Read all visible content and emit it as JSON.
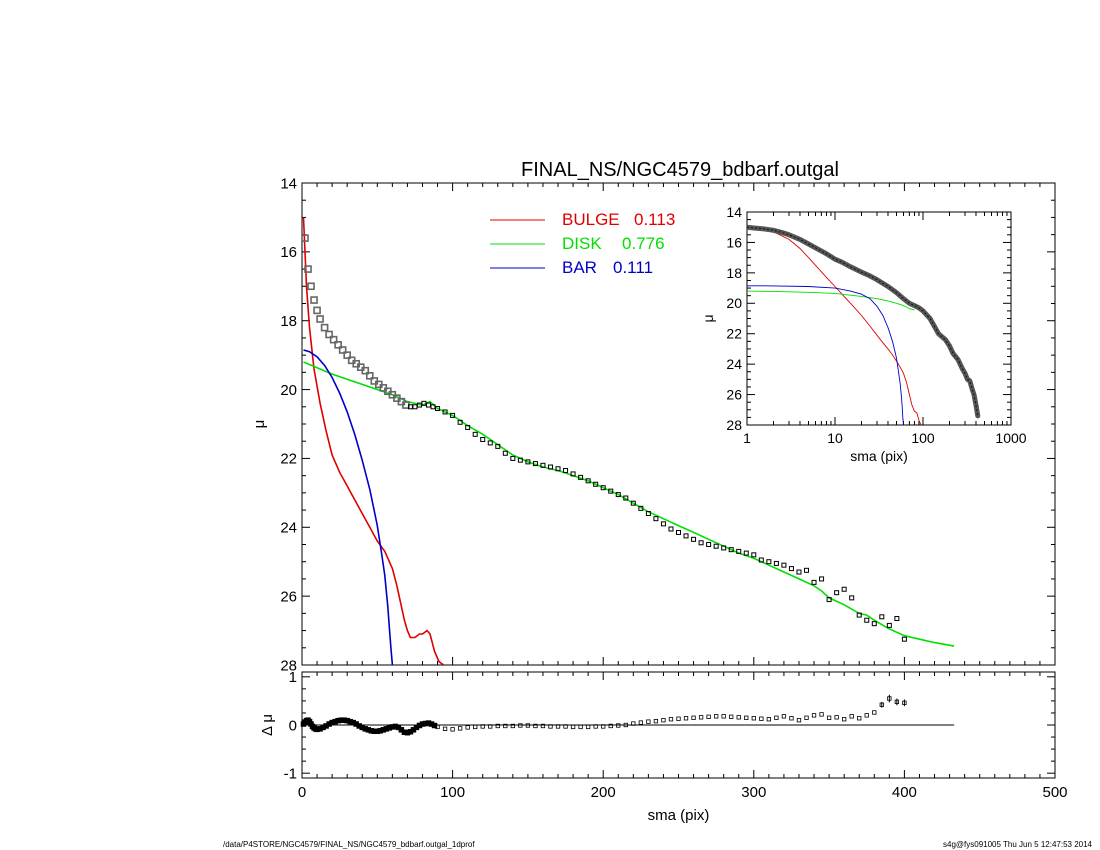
{
  "footer": {
    "path": "/data/P4STORE/NGC4579/FINAL_NS/NGC4579_bdbarf.outgal_1dprof",
    "stamp": "s4g@fys091005  Thu Jun  5 12:47:53 2014"
  },
  "colors": {
    "bulge": "#e00000",
    "disk": "#00e000",
    "bar": "#0000c8",
    "data": "#000000"
  },
  "chart_data": [
    {
      "id": "main",
      "type": "line",
      "title": "FINAL_NS/NGC4579_bdbarf.outgal",
      "xlabel": "",
      "ylabel": "μ",
      "xlim": [
        0,
        500
      ],
      "ylim": [
        28,
        14
      ],
      "yticks": [
        14,
        16,
        18,
        20,
        22,
        24,
        26,
        28
      ],
      "xticks": [
        0,
        100,
        200,
        300,
        400,
        500
      ],
      "show_xtick_labels": false,
      "legend": [
        {
          "name": "BULGE",
          "value": "0.113",
          "color": "#e00000"
        },
        {
          "name": "DISK",
          "value": "0.776",
          "color": "#00e000"
        },
        {
          "name": "BAR",
          "value": "0.111",
          "color": "#0000c8"
        }
      ],
      "series": [
        {
          "name": "BULGE",
          "color": "#e00000",
          "x": [
            1,
            3,
            5,
            8,
            12,
            16,
            20,
            25,
            30,
            35,
            40,
            45,
            50,
            55,
            60,
            63,
            66,
            68,
            70,
            72,
            75,
            78,
            80,
            83,
            85,
            88,
            91,
            94
          ],
          "y": [
            15.0,
            17.0,
            18.2,
            19.4,
            20.4,
            21.2,
            21.9,
            22.4,
            22.8,
            23.2,
            23.6,
            24.0,
            24.4,
            24.7,
            25.2,
            25.7,
            26.3,
            26.7,
            27.0,
            27.2,
            27.2,
            27.1,
            27.1,
            27.0,
            27.1,
            27.6,
            27.9,
            28.0
          ]
        },
        {
          "name": "DISK",
          "color": "#00e000",
          "x": [
            1,
            20,
            40,
            60,
            70,
            80,
            85,
            90,
            100,
            110,
            120,
            130,
            140,
            150,
            160,
            170,
            180,
            190,
            200,
            210,
            220,
            230,
            240,
            250,
            260,
            270,
            280,
            290,
            300,
            310,
            320,
            330,
            340,
            345,
            350,
            360,
            370,
            375,
            380,
            390,
            400,
            410,
            420,
            433
          ],
          "y": [
            19.2,
            19.55,
            19.85,
            20.15,
            20.35,
            20.45,
            20.35,
            20.55,
            20.75,
            21.05,
            21.3,
            21.6,
            21.9,
            22.1,
            22.25,
            22.35,
            22.5,
            22.65,
            22.85,
            23.05,
            23.3,
            23.55,
            23.75,
            23.95,
            24.15,
            24.35,
            24.55,
            24.75,
            24.9,
            25.1,
            25.3,
            25.5,
            25.7,
            25.85,
            26.05,
            26.25,
            26.5,
            26.55,
            26.7,
            26.95,
            27.15,
            27.25,
            27.35,
            27.45
          ]
        },
        {
          "name": "BAR",
          "color": "#0000c8",
          "x": [
            1,
            5,
            10,
            15,
            20,
            25,
            30,
            35,
            40,
            45,
            50,
            53,
            55,
            57,
            58,
            59,
            60
          ],
          "y": [
            18.85,
            18.9,
            19.05,
            19.3,
            19.65,
            20.1,
            20.65,
            21.3,
            22.05,
            22.9,
            23.95,
            24.8,
            25.4,
            26.3,
            26.9,
            27.5,
            28.0
          ]
        },
        {
          "name": "data",
          "color": "#000000",
          "style": "squares",
          "x": [
            2,
            4,
            6,
            8,
            10,
            12,
            15,
            18,
            21,
            24,
            27,
            30,
            33,
            36,
            39,
            42,
            45,
            48,
            51,
            54,
            57,
            60,
            63,
            66,
            69,
            72,
            75,
            78,
            81,
            84,
            87,
            90,
            95,
            100,
            105,
            110,
            115,
            120,
            125,
            130,
            135,
            140,
            145,
            150,
            155,
            160,
            165,
            170,
            175,
            180,
            185,
            190,
            195,
            200,
            205,
            210,
            215,
            220,
            225,
            230,
            235,
            240,
            245,
            250,
            255,
            260,
            265,
            270,
            275,
            280,
            285,
            290,
            295,
            300,
            305,
            310,
            315,
            320,
            325,
            330,
            335,
            340,
            345,
            350,
            355,
            360,
            365,
            370,
            375,
            380,
            385,
            390,
            395,
            400
          ],
          "y": [
            15.6,
            16.5,
            17.0,
            17.4,
            17.7,
            17.95,
            18.2,
            18.4,
            18.55,
            18.7,
            18.85,
            19.0,
            19.15,
            19.25,
            19.35,
            19.45,
            19.6,
            19.75,
            19.85,
            19.95,
            20.05,
            20.15,
            20.25,
            20.35,
            20.45,
            20.5,
            20.5,
            20.45,
            20.4,
            20.45,
            20.5,
            20.55,
            20.65,
            20.75,
            20.95,
            21.1,
            21.3,
            21.45,
            21.55,
            21.65,
            21.85,
            22.0,
            22.05,
            22.1,
            22.15,
            22.2,
            22.25,
            22.3,
            22.35,
            22.45,
            22.55,
            22.65,
            22.75,
            22.85,
            22.95,
            23.05,
            23.15,
            23.3,
            23.45,
            23.6,
            23.75,
            23.9,
            24.05,
            24.15,
            24.25,
            24.35,
            24.45,
            24.5,
            24.55,
            24.6,
            24.65,
            24.7,
            24.75,
            24.8,
            24.95,
            25.0,
            25.05,
            25.1,
            25.2,
            25.3,
            25.25,
            25.6,
            25.5,
            26.1,
            25.9,
            25.8,
            26.05,
            26.55,
            26.7,
            26.8,
            26.6,
            26.85,
            26.65,
            27.25
          ]
        }
      ]
    },
    {
      "id": "resid",
      "type": "scatter",
      "title": "",
      "xlabel": "sma (pix)",
      "ylabel": "Δ μ",
      "xlim": [
        0,
        500
      ],
      "ylim": [
        -1.1,
        1.1
      ],
      "yticks": [
        -1,
        0,
        1
      ],
      "xticks": [
        0,
        100,
        200,
        300,
        400,
        500
      ],
      "zero_line": {
        "x0": 0,
        "x1": 433
      },
      "series": [
        {
          "name": "residual",
          "color": "#000000",
          "x": [
            1,
            2,
            3,
            4,
            5,
            6,
            7,
            8,
            9,
            10,
            12,
            14,
            16,
            18,
            20,
            22,
            24,
            26,
            28,
            30,
            32,
            34,
            36,
            38,
            40,
            42,
            44,
            46,
            48,
            50,
            52,
            54,
            56,
            58,
            60,
            62,
            64,
            66,
            68,
            70,
            72,
            74,
            76,
            78,
            80,
            82,
            84,
            86,
            88,
            90,
            95,
            100,
            105,
            110,
            115,
            120,
            125,
            130,
            135,
            140,
            145,
            150,
            155,
            160,
            165,
            170,
            175,
            180,
            185,
            190,
            195,
            200,
            205,
            210,
            215,
            220,
            225,
            230,
            235,
            240,
            245,
            250,
            255,
            260,
            265,
            270,
            275,
            280,
            285,
            290,
            295,
            300,
            305,
            310,
            315,
            320,
            325,
            330,
            335,
            340,
            345,
            350,
            355,
            360,
            365,
            370,
            375,
            380,
            385,
            390,
            395,
            400
          ],
          "y": [
            0.02,
            0.06,
            0.09,
            0.1,
            0.07,
            0.02,
            -0.03,
            -0.06,
            -0.08,
            -0.09,
            -0.08,
            -0.05,
            -0.02,
            0.02,
            0.05,
            0.07,
            0.09,
            0.1,
            0.1,
            0.09,
            0.07,
            0.05,
            0.02,
            -0.02,
            -0.05,
            -0.08,
            -0.1,
            -0.12,
            -0.13,
            -0.13,
            -0.12,
            -0.1,
            -0.08,
            -0.06,
            -0.04,
            -0.03,
            -0.05,
            -0.1,
            -0.15,
            -0.16,
            -0.14,
            -0.1,
            -0.05,
            -0.01,
            0.02,
            0.03,
            0.04,
            0.02,
            -0.01,
            -0.04,
            -0.08,
            -0.09,
            -0.07,
            -0.05,
            -0.04,
            -0.03,
            -0.03,
            -0.02,
            -0.02,
            -0.02,
            -0.01,
            -0.01,
            -0.02,
            -0.02,
            -0.03,
            -0.03,
            -0.03,
            -0.04,
            -0.04,
            -0.04,
            -0.03,
            -0.03,
            -0.02,
            -0.01,
            0.0,
            0.03,
            0.05,
            0.07,
            0.08,
            0.1,
            0.12,
            0.13,
            0.14,
            0.15,
            0.16,
            0.17,
            0.18,
            0.18,
            0.17,
            0.16,
            0.15,
            0.14,
            0.13,
            0.12,
            0.15,
            0.18,
            0.14,
            0.1,
            0.15,
            0.2,
            0.22,
            0.15,
            0.16,
            0.12,
            0.18,
            0.14,
            0.2,
            0.26,
            0.42,
            0.55,
            0.48,
            0.46
          ],
          "errors": [
            0,
            0,
            0,
            0,
            0,
            0,
            0,
            0,
            0,
            0,
            0,
            0,
            0,
            0,
            0,
            0,
            0,
            0,
            0,
            0,
            0,
            0,
            0,
            0,
            0,
            0,
            0,
            0,
            0,
            0,
            0,
            0,
            0,
            0,
            0,
            0,
            0,
            0,
            0,
            0,
            0,
            0,
            0,
            0,
            0,
            0,
            0,
            0,
            0,
            0,
            0,
            0,
            0,
            0,
            0,
            0,
            0,
            0,
            0,
            0,
            0,
            0,
            0,
            0,
            0,
            0,
            0,
            0,
            0,
            0,
            0,
            0,
            0,
            0,
            0,
            0,
            0,
            0,
            0,
            0,
            0,
            0,
            0,
            0,
            0,
            0,
            0,
            0,
            0,
            0,
            0,
            0,
            0,
            0,
            0,
            0,
            0,
            0,
            0,
            0,
            0,
            0,
            0,
            0,
            0,
            0,
            0,
            0,
            0.06,
            0.08,
            0.07,
            0.07
          ]
        }
      ]
    },
    {
      "id": "inset",
      "type": "line",
      "title": "",
      "xlabel": "sma (pix)",
      "ylabel": "μ",
      "xscale": "log",
      "xlim": [
        1,
        1000
      ],
      "ylim": [
        28,
        14
      ],
      "yticks": [
        14,
        16,
        18,
        20,
        22,
        24,
        26,
        28
      ],
      "xticks": [
        1,
        10,
        100,
        1000
      ],
      "series": [
        {
          "name": "BULGE",
          "color": "#e00000",
          "x": [
            1,
            1.5,
            2,
            3,
            4,
            5,
            6,
            8,
            10,
            12,
            15,
            20,
            25,
            30,
            35,
            40,
            45,
            50,
            55,
            60,
            65,
            70,
            75,
            80,
            85,
            90,
            95
          ],
          "y": [
            15.0,
            15.1,
            15.3,
            15.8,
            16.4,
            17.0,
            17.5,
            18.3,
            18.9,
            19.4,
            20.0,
            20.8,
            21.5,
            22.1,
            22.6,
            23.0,
            23.4,
            23.8,
            24.2,
            24.6,
            25.2,
            26.0,
            26.7,
            27.1,
            27.2,
            27.7,
            28.0
          ]
        },
        {
          "name": "DISK",
          "color": "#00e000",
          "x": [
            1,
            2,
            5,
            10,
            20,
            30,
            40,
            50,
            60,
            70,
            80
          ],
          "y": [
            19.2,
            19.22,
            19.28,
            19.35,
            19.55,
            19.7,
            19.85,
            20.0,
            20.15,
            20.35,
            20.45
          ]
        },
        {
          "name": "BAR",
          "color": "#0000c8",
          "x": [
            1,
            2,
            5,
            10,
            15,
            20,
            25,
            30,
            35,
            40,
            45,
            50,
            53,
            55,
            57,
            58,
            59,
            60
          ],
          "y": [
            18.85,
            18.86,
            18.9,
            19.0,
            19.2,
            19.4,
            19.7,
            20.2,
            20.8,
            21.6,
            22.5,
            23.6,
            24.6,
            25.3,
            26.2,
            26.8,
            27.5,
            28.0
          ]
        },
        {
          "name": "data",
          "color": "#000000",
          "style": "thick",
          "x": [
            1,
            1.2,
            1.5,
            2,
            2.5,
            3,
            4,
            5,
            6,
            8,
            10,
            12,
            15,
            20,
            25,
            30,
            40,
            50,
            60,
            70,
            80,
            90,
            100,
            120,
            150,
            180,
            200,
            220,
            250,
            280,
            300,
            320,
            340,
            360,
            380,
            400,
            420
          ],
          "y": [
            15.0,
            15.05,
            15.1,
            15.2,
            15.35,
            15.5,
            15.8,
            16.1,
            16.35,
            16.75,
            17.1,
            17.3,
            17.6,
            17.95,
            18.2,
            18.45,
            18.9,
            19.3,
            19.7,
            20.0,
            20.15,
            20.3,
            20.5,
            21.0,
            22.0,
            22.4,
            22.8,
            23.3,
            23.7,
            24.3,
            24.6,
            25.0,
            25.1,
            25.6,
            26.0,
            26.7,
            27.4
          ]
        }
      ]
    }
  ]
}
